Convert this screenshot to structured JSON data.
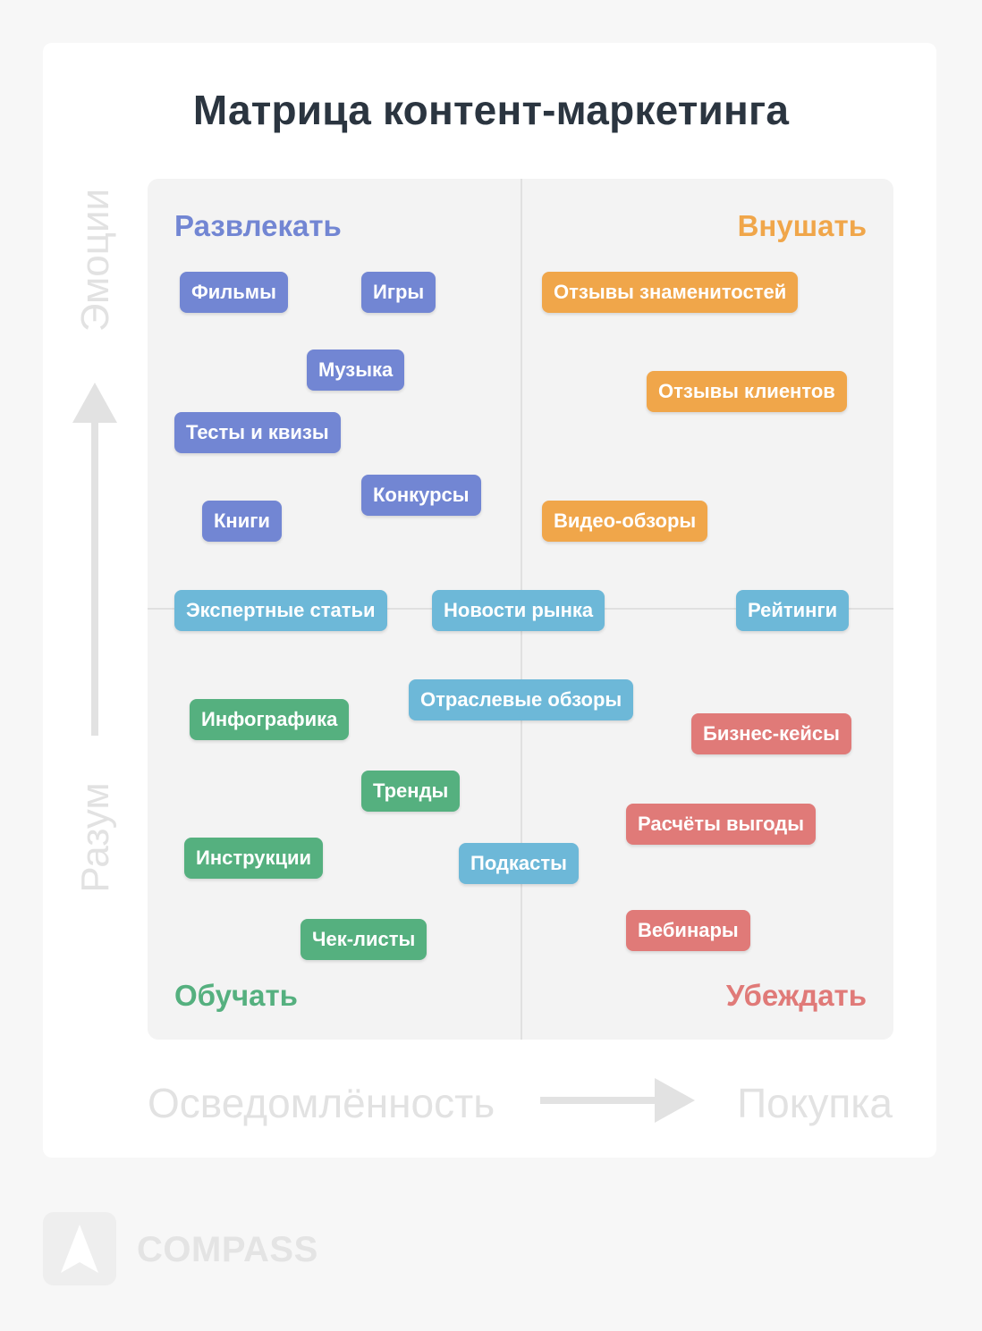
{
  "title": "Матрица контент-маркетинга",
  "colors": {
    "entertain": "#7286d3",
    "inspire": "#f0a64a",
    "educate": "#55b07f",
    "convince": "#e07a78",
    "neutral": "#6db8d8"
  },
  "axes": {
    "y_top": "Эмоции",
    "y_bottom": "Разум",
    "x_left": "Осведомлённость",
    "x_right": "Покупка"
  },
  "quadrants": {
    "top_left": "Развлекать",
    "top_right": "Внушать",
    "bottom_left": "Обучать",
    "bottom_right": "Убеждать"
  },
  "chips": [
    {
      "label": "Фильмы",
      "group": "entertain"
    },
    {
      "label": "Игры",
      "group": "entertain"
    },
    {
      "label": "Музыка",
      "group": "entertain"
    },
    {
      "label": "Тесты и квизы",
      "group": "entertain"
    },
    {
      "label": "Конкурсы",
      "group": "entertain"
    },
    {
      "label": "Книги",
      "group": "entertain"
    },
    {
      "label": "Отзывы знаменитостей",
      "group": "inspire"
    },
    {
      "label": "Отзывы клиентов",
      "group": "inspire"
    },
    {
      "label": "Видео-обзоры",
      "group": "inspire"
    },
    {
      "label": "Экспертные статьи",
      "group": "neutral"
    },
    {
      "label": "Новости рынка",
      "group": "neutral"
    },
    {
      "label": "Рейтинги",
      "group": "neutral"
    },
    {
      "label": "Отраслевые обзоры",
      "group": "neutral"
    },
    {
      "label": "Подкасты",
      "group": "neutral"
    },
    {
      "label": "Инфографика",
      "group": "educate"
    },
    {
      "label": "Тренды",
      "group": "educate"
    },
    {
      "label": "Инструкции",
      "group": "educate"
    },
    {
      "label": "Чек-листы",
      "group": "educate"
    },
    {
      "label": "Бизнес-кейсы",
      "group": "convince"
    },
    {
      "label": "Расчёты выгоды",
      "group": "convince"
    },
    {
      "label": "Вебинары",
      "group": "convince"
    }
  ],
  "brand": {
    "name": "COMPASS",
    "logo_icon": "compass-arrow-icon"
  }
}
